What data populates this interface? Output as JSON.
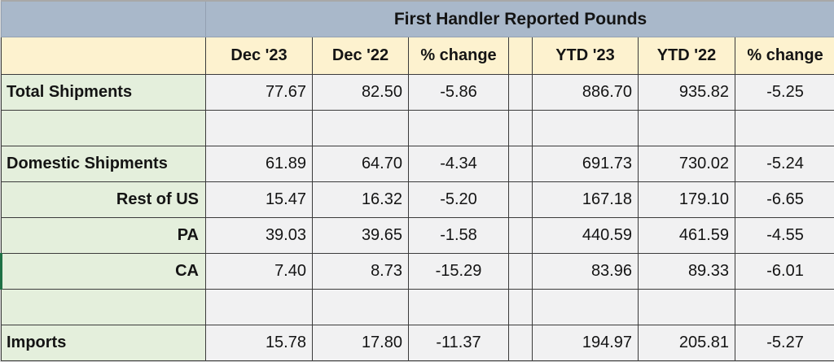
{
  "title": "First Handler Reported Pounds",
  "columns": {
    "dec23": "Dec '23",
    "dec22": "Dec '22",
    "chg": "% change",
    "ytd23": "YTD '23",
    "ytd22": "YTD '22",
    "ychg": "% change"
  },
  "rows": [
    {
      "label": "Total Shipments",
      "dec23": "77.67",
      "dec22": "82.50",
      "chg": "-5.86",
      "ytd23": "886.70",
      "ytd22": "935.82",
      "ychg": "-5.25"
    },
    {
      "label": "",
      "dec23": "",
      "dec22": "",
      "chg": "",
      "ytd23": "",
      "ytd22": "",
      "ychg": ""
    },
    {
      "label": "Domestic Shipments",
      "dec23": "61.89",
      "dec22": "64.70",
      "chg": "-4.34",
      "ytd23": "691.73",
      "ytd22": "730.02",
      "ychg": "-5.24"
    },
    {
      "label": "Rest of US",
      "dec23": "15.47",
      "dec22": "16.32",
      "chg": "-5.20",
      "ytd23": "167.18",
      "ytd22": "179.10",
      "ychg": "-6.65"
    },
    {
      "label": "PA",
      "dec23": "39.03",
      "dec22": "39.65",
      "chg": "-1.58",
      "ytd23": "440.59",
      "ytd22": "461.59",
      "ychg": "-4.55"
    },
    {
      "label": "CA",
      "dec23": "7.40",
      "dec22": "8.73",
      "chg": "-15.29",
      "ytd23": "83.96",
      "ytd22": "89.33",
      "ychg": "-6.01"
    },
    {
      "label": "",
      "dec23": "",
      "dec22": "",
      "chg": "",
      "ytd23": "",
      "ytd22": "",
      "ychg": ""
    },
    {
      "label": "Imports",
      "dec23": "15.78",
      "dec22": "17.80",
      "chg": "-11.37",
      "ytd23": "194.97",
      "ytd22": "205.81",
      "ychg": "-5.27"
    }
  ],
  "colors": {
    "title_bg": "#a9b8ca",
    "header_bg": "#fdf2cf",
    "label_bg": "#e4efdc",
    "cell_bg": "#f1f1f2",
    "border": "#3b3b3b",
    "ca_accent_green": "#1e7145"
  }
}
